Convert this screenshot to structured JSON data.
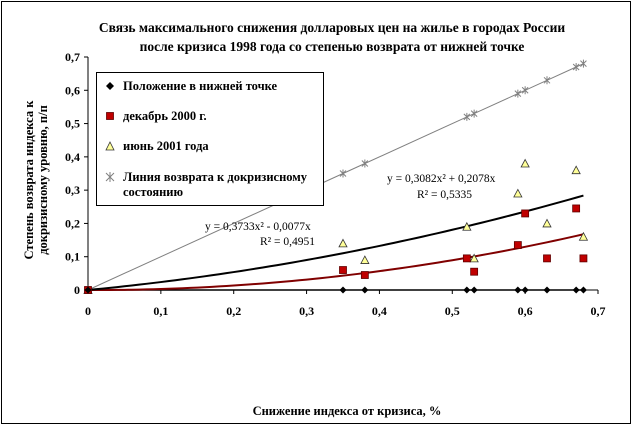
{
  "title_line1": "Связь максимального снижения долларовых цен на жилье в городах России",
  "title_line2": "после кризиса 1998 года со степенью возврата от нижней точке",
  "chart_data": {
    "type": "scatter",
    "title": "Связь максимального снижения долларовых цен на жилье в городах России после кризиса 1998 года со степенью возврата от нижней точке",
    "xlabel": "Снижение индекса от кризиса, %",
    "ylabel": "Степень возврата индекса к докризисному уровню, п/п",
    "xlim": [
      0,
      0.7
    ],
    "ylim": [
      0,
      0.7
    ],
    "x_ticks": [
      "0",
      "0,1",
      "0,2",
      "0,3",
      "0,4",
      "0,5",
      "0,6",
      "0,7"
    ],
    "y_ticks": [
      "0",
      "0,1",
      "0,2",
      "0,3",
      "0,4",
      "0,5",
      "0,6",
      "0,7"
    ],
    "grid": false,
    "legend_position": "top-left",
    "series": [
      {
        "name": "Положение в нижней точке",
        "marker": "diamond",
        "color": "#000000",
        "points": [
          [
            0,
            0
          ],
          [
            0.35,
            0
          ],
          [
            0.38,
            0
          ],
          [
            0.52,
            0
          ],
          [
            0.53,
            0
          ],
          [
            0.59,
            0
          ],
          [
            0.6,
            0
          ],
          [
            0.63,
            0
          ],
          [
            0.67,
            0
          ],
          [
            0.68,
            0
          ]
        ]
      },
      {
        "name": "декабрь 2000 г.",
        "marker": "square",
        "color": "#c00000",
        "points": [
          [
            0,
            0
          ],
          [
            0.35,
            0.06
          ],
          [
            0.38,
            0.045
          ],
          [
            0.52,
            0.095
          ],
          [
            0.53,
            0.055
          ],
          [
            0.59,
            0.135
          ],
          [
            0.6,
            0.23
          ],
          [
            0.63,
            0.095
          ],
          [
            0.67,
            0.245
          ],
          [
            0.68,
            0.095
          ]
        ]
      },
      {
        "name": "июнь 2001 года",
        "marker": "triangle",
        "color": "#ffff99",
        "points": [
          [
            0,
            0
          ],
          [
            0.35,
            0.14
          ],
          [
            0.38,
            0.09
          ],
          [
            0.52,
            0.19
          ],
          [
            0.53,
            0.095
          ],
          [
            0.59,
            0.29
          ],
          [
            0.6,
            0.38
          ],
          [
            0.63,
            0.2
          ],
          [
            0.67,
            0.36
          ],
          [
            0.68,
            0.16
          ]
        ]
      },
      {
        "name": "Линия возврата к докризисному состоянию",
        "marker": "x",
        "color": "#808080",
        "points": [
          [
            0,
            0
          ],
          [
            0.35,
            0.35
          ],
          [
            0.38,
            0.38
          ],
          [
            0.52,
            0.52
          ],
          [
            0.53,
            0.53
          ],
          [
            0.59,
            0.59
          ],
          [
            0.6,
            0.6
          ],
          [
            0.63,
            0.63
          ],
          [
            0.67,
            0.67
          ],
          [
            0.68,
            0.68
          ]
        ]
      }
    ],
    "trendlines": [
      {
        "equation": "y = 0,3733x² - 0,0077x",
        "r2": "R² = 0,4951",
        "a": 0.3733,
        "b": -0.0077,
        "color": "#800000"
      },
      {
        "equation": "y = 0,3082x² + 0,2078x",
        "r2": "R² = 0,5335",
        "a": 0.3082,
        "b": 0.2078,
        "color": "#000000"
      }
    ]
  }
}
